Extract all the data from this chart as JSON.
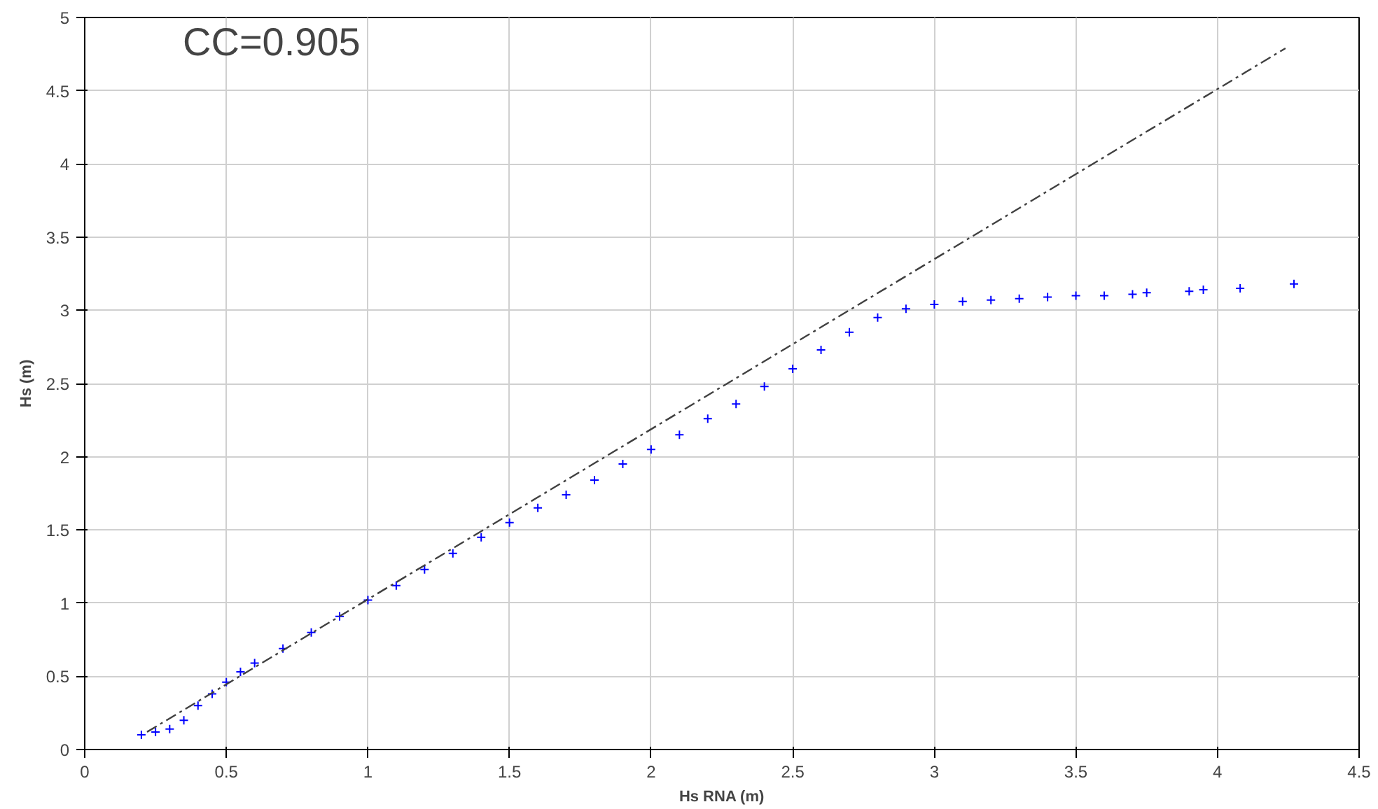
{
  "chart_data": {
    "type": "scatter",
    "xlabel": "Hs RNA (m)",
    "ylabel": "Hs (m)",
    "annotations": [
      "CC=0.905"
    ],
    "xlim": [
      0,
      4.5
    ],
    "ylim": [
      0,
      5
    ],
    "xticks": [
      0,
      0.5,
      1,
      1.5,
      2,
      2.5,
      3,
      3.5,
      4,
      4.5
    ],
    "yticks": [
      0,
      0.5,
      1,
      1.5,
      2,
      2.5,
      3,
      3.5,
      4,
      4.5,
      5
    ],
    "grid": true,
    "series": [
      {
        "color": "#0000ff",
        "marker": "cross",
        "x": [
          0.2,
          0.25,
          0.3,
          0.35,
          0.4,
          0.45,
          0.5,
          0.55,
          0.6,
          0.7,
          0.8,
          0.9,
          1.0,
          1.1,
          1.2,
          1.3,
          1.4,
          1.5,
          1.6,
          1.7,
          1.8,
          1.9,
          2.0,
          2.1,
          2.2,
          2.3,
          2.4,
          2.5,
          2.6,
          2.7,
          2.8,
          2.9,
          3.0,
          3.1,
          3.2,
          3.3,
          3.4,
          3.5,
          3.6,
          3.7,
          3.75,
          3.9,
          3.95,
          4.08,
          4.27
        ],
        "values": [
          0.1,
          0.12,
          0.14,
          0.2,
          0.3,
          0.38,
          0.46,
          0.53,
          0.59,
          0.69,
          0.8,
          0.91,
          1.02,
          1.12,
          1.23,
          1.34,
          1.45,
          1.55,
          1.65,
          1.74,
          1.84,
          1.95,
          2.05,
          2.15,
          2.26,
          2.36,
          2.48,
          2.6,
          2.73,
          2.85,
          2.95,
          3.01,
          3.04,
          3.06,
          3.07,
          3.08,
          3.09,
          3.1,
          3.1,
          3.11,
          3.12,
          3.13,
          3.14,
          3.15,
          3.18
        ]
      },
      {
        "type": "line",
        "color": "#404040",
        "line_style": "dashed",
        "x": [
          0.22,
          4.24
        ],
        "values": [
          0.12,
          4.79
        ]
      }
    ]
  }
}
